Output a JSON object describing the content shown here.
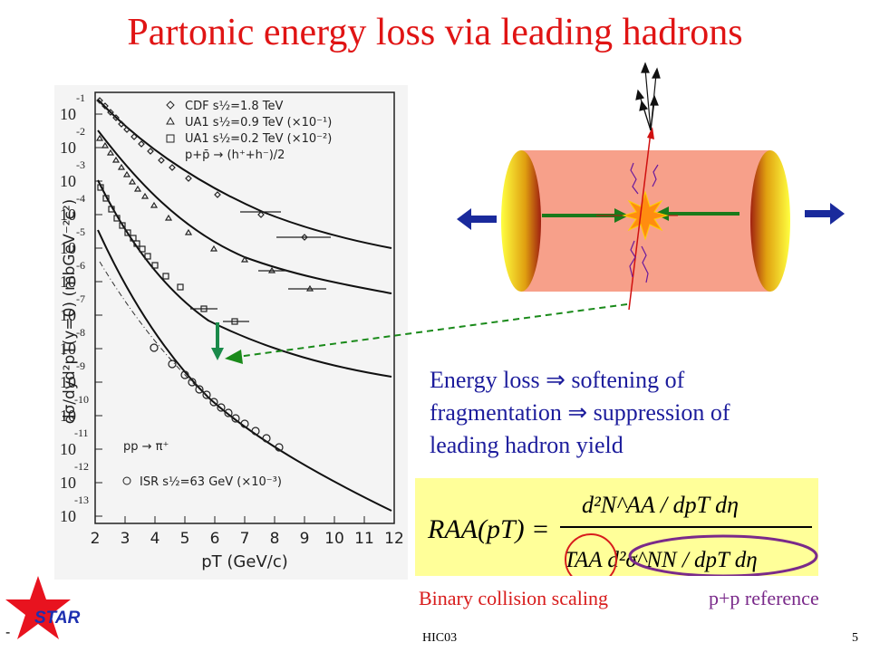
{
  "slide": {
    "title": "Partonic energy loss via leading hadrons",
    "footer_center": "HIC03",
    "page_number": "5",
    "footer_dash": "-"
  },
  "logo": {
    "text": "STAR",
    "icon": "star-icon",
    "color": "#e8131f"
  },
  "plot": {
    "ylabel": "dσ/dyd²pT(y=0) (mbGeV⁻²c²)",
    "xlabel": "pT (GeV/c)",
    "x_ticks": [
      "2",
      "3",
      "4",
      "5",
      "6",
      "7",
      "8",
      "9",
      "10",
      "11",
      "12"
    ],
    "y_ticks": [
      {
        "base": "10",
        "exp": "-1"
      },
      {
        "base": "10",
        "exp": "-2"
      },
      {
        "base": "10",
        "exp": "-3"
      },
      {
        "base": "10",
        "exp": "-4"
      },
      {
        "base": "10",
        "exp": "-5"
      },
      {
        "base": "10",
        "exp": "-6"
      },
      {
        "base": "10",
        "exp": "-7"
      },
      {
        "base": "10",
        "exp": "-8"
      },
      {
        "base": "10",
        "exp": "-9"
      },
      {
        "base": "10",
        "exp": "-10"
      },
      {
        "base": "10",
        "exp": "-11"
      },
      {
        "base": "10",
        "exp": "-12"
      },
      {
        "base": "10",
        "exp": "-13"
      }
    ],
    "legend_top": [
      {
        "marker": "diamond",
        "text": "CDF s½=1.8 TeV"
      },
      {
        "marker": "triangle",
        "text": "UA1 s½=0.9 TeV (×10⁻¹)"
      },
      {
        "marker": "square",
        "text": "UA1 s½=0.2 TeV (×10⁻²)"
      },
      {
        "marker": "none",
        "text": "p+p̄ → (h⁺+h⁻)/2"
      }
    ],
    "legend_bottom": [
      {
        "marker": "none",
        "text": "pp → π⁺"
      },
      {
        "marker": "circle",
        "text": "ISR s½=63 GeV (×10⁻³)"
      }
    ]
  },
  "text": {
    "eloss_lines": [
      "Energy loss  ⇒ softening of",
      "fragmentation  ⇒ suppression of",
      "leading hadron yield"
    ]
  },
  "formula": {
    "lhs": "RAA(pT) =",
    "numerator": "d²N^AA / dpT dη",
    "denominator": "TAA d²σ^NN / dpT dη"
  },
  "labels": {
    "binary": "Binary collision scaling",
    "pp_reference": "p+p reference"
  },
  "colors": {
    "title": "#e01414",
    "text_blue": "#1c1c9c",
    "formula_bg": "#ffff99",
    "circle_red": "#d81c1c",
    "ellipse_purple": "#7a2a8a",
    "tube": "#f7a08a",
    "arrow_green": "#1a7a1a",
    "arrow_blue": "#1a2a9c"
  }
}
